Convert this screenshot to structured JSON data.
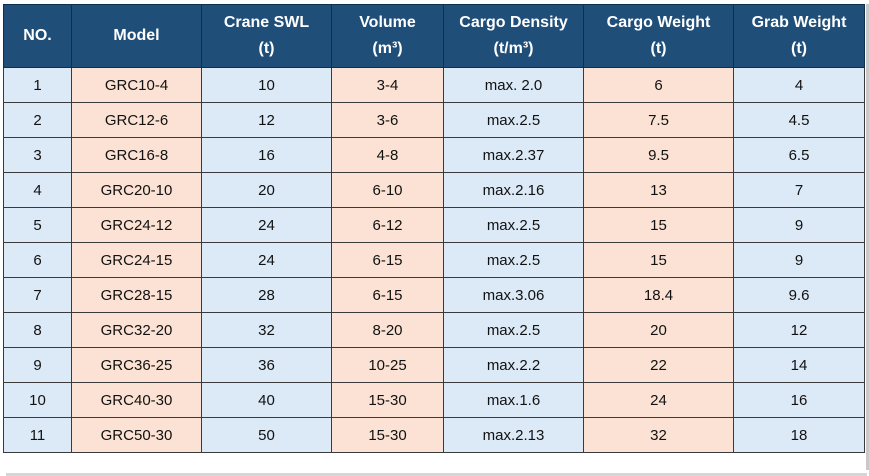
{
  "table": {
    "headers": [
      {
        "line1": "NO.",
        "line2": ""
      },
      {
        "line1": "Model",
        "line2": ""
      },
      {
        "line1": "Crane SWL",
        "line2": "(t)"
      },
      {
        "line1": "Volume",
        "line2": "(m³)"
      },
      {
        "line1": "Cargo Density",
        "line2": "(t/m³)"
      },
      {
        "line1": "Cargo Weight",
        "line2": "(t)"
      },
      {
        "line1": "Grab Weight",
        "line2": "(t)"
      }
    ],
    "rows": [
      [
        "1",
        "GRC10-4",
        "10",
        "3-4",
        "max. 2.0",
        "6",
        "4"
      ],
      [
        "2",
        "GRC12-6",
        "12",
        "3-6",
        "max.2.5",
        "7.5",
        "4.5"
      ],
      [
        "3",
        "GRC16-8",
        "16",
        "4-8",
        "max.2.37",
        "9.5",
        "6.5"
      ],
      [
        "4",
        "GRC20-10",
        "20",
        "6-10",
        "max.2.16",
        "13",
        "7"
      ],
      [
        "5",
        "GRC24-12",
        "24",
        "6-12",
        "max.2.5",
        "15",
        "9"
      ],
      [
        "6",
        "GRC24-15",
        "24",
        "6-15",
        "max.2.5",
        "15",
        "9"
      ],
      [
        "7",
        "GRC28-15",
        "28",
        "6-15",
        "max.3.06",
        "18.4",
        "9.6"
      ],
      [
        "8",
        "GRC32-20",
        "32",
        "8-20",
        "max.2.5",
        "20",
        "12"
      ],
      [
        "9",
        "GRC36-25",
        "36",
        "10-25",
        "max.2.2",
        "22",
        "14"
      ],
      [
        "10",
        "GRC40-30",
        "40",
        "15-30",
        "max.1.6",
        "24",
        "16"
      ],
      [
        "11",
        "GRC50-30",
        "50",
        "15-30",
        "max.2.13",
        "32",
        "18"
      ]
    ],
    "colors": {
      "header_bg": "#1f4e79",
      "header_text": "#ffffff",
      "blue_cell": "#dce9f6",
      "peach_cell": "#fbe2d4"
    }
  }
}
